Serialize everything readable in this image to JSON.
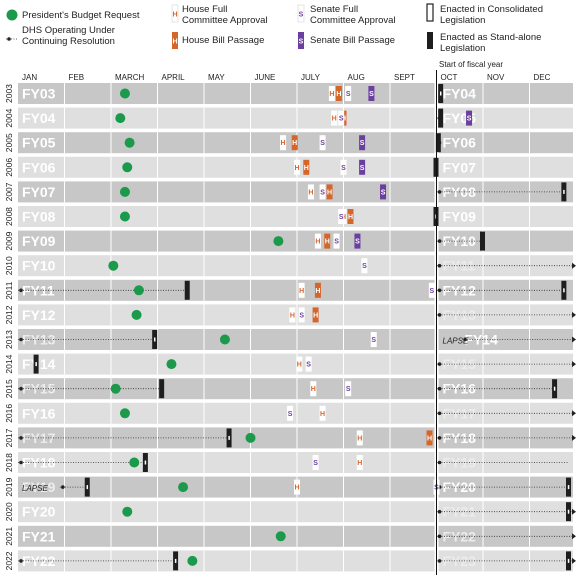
{
  "legend": {
    "budget": "President's Budget Request",
    "cr": "DHS Operating Under Continuing Resolution",
    "house_committee": "House Full Committee Approval",
    "house_passage": "House Bill Passage",
    "senate_committee": "Senate Full Committee Approval",
    "senate_passage": "Senate Bill Passage",
    "consolidated": "Enacted in Consolidated Legislation",
    "standalone": "Enacted as Stand-alone Legislation",
    "house_letter": "H",
    "senate_letter": "S"
  },
  "fiscal_year_start_label": "Start of fiscal year",
  "lapse_label": "LAPSE",
  "colors": {
    "budget": "#1a9a4a",
    "house": "#d4662c",
    "senate": "#6b3fa0",
    "enacted": "#1e1e1e",
    "row_dark": "#c7c7c8",
    "row_light": "#dfdfe0",
    "fy_light": "#ffffff",
    "fy_faded": "#ececec"
  },
  "chart_data": {
    "type": "timeline",
    "months": [
      "JAN",
      "FEB",
      "MARCH",
      "APRIL",
      "MAY",
      "JUNE",
      "JULY",
      "AUG",
      "SEPT",
      "OCT",
      "NOV",
      "DEC"
    ],
    "rows": [
      {
        "year": "2003",
        "left_label": "FY03",
        "right_label": "FY04",
        "budget": 2.3,
        "hc": [
          6.75
        ],
        "hp": [
          6.9
        ],
        "sc": [
          7.1
        ],
        "sp": [
          7.6
        ],
        "enacted_prev": null,
        "enacted_next": {
          "m": 9.1,
          "type": "consolidated"
        },
        "cr_prev": null,
        "cr_next": null,
        "right_faded": false
      },
      {
        "year": "2004",
        "left_label": "FY04",
        "right_label": "FY05",
        "budget": 2.2,
        "hc": [
          6.8
        ],
        "hp": [
          7.0
        ],
        "sc": [
          6.95
        ],
        "sp": [
          9.7
        ],
        "enacted_prev": null,
        "enacted_next": {
          "m": 9.1,
          "type": "standalone"
        },
        "cr_prev": null,
        "cr_next": {
          "from": 9.0,
          "to": 9.1
        },
        "right_faded": false
      },
      {
        "year": "2005",
        "left_label": "FY05",
        "right_label": "FY06",
        "budget": 2.4,
        "hc": [
          5.7
        ],
        "hp": [
          5.95
        ],
        "sc": [
          6.55
        ],
        "sp": [
          7.4
        ],
        "enacted_prev": null,
        "enacted_next": {
          "m": 9.05,
          "type": "standalone"
        },
        "cr_prev": null,
        "cr_next": {
          "from": 9.0,
          "to": 9.05
        },
        "right_faded": false
      },
      {
        "year": "2006",
        "left_label": "FY06",
        "right_label": "FY07",
        "budget": 2.35,
        "hc": [
          6.0
        ],
        "hp": [
          6.2
        ],
        "sc": [
          7.0
        ],
        "sp": [
          7.4
        ],
        "enacted_prev": null,
        "enacted_next": {
          "m": 9.0,
          "type": "standalone"
        },
        "cr_prev": null,
        "cr_next": null,
        "right_faded": false
      },
      {
        "year": "2007",
        "left_label": "FY07",
        "right_label": "FY08",
        "budget": 2.3,
        "hc": [
          6.3
        ],
        "hp": [
          6.7
        ],
        "sc": [
          6.55
        ],
        "sp": [
          7.85
        ],
        "enacted_prev": null,
        "enacted_next": {
          "m": 11.75,
          "type": "consolidated"
        },
        "cr_prev": null,
        "cr_next": {
          "from": 9.0,
          "to": 11.75
        },
        "right_faded": false
      },
      {
        "year": "2008",
        "left_label": "FY08",
        "right_label": "FY09",
        "budget": 2.3,
        "hc": [
          7.0
        ],
        "hp": [
          7.15
        ],
        "sc": [
          6.95
        ],
        "sp": [],
        "enacted_prev": null,
        "enacted_next": {
          "m": 9.0,
          "type": "consolidated"
        },
        "cr_prev": null,
        "cr_next": null,
        "right_faded": false
      },
      {
        "year": "2009",
        "left_label": "FY09",
        "right_label": "FY10",
        "budget": 5.6,
        "hc": [
          6.45
        ],
        "hp": [
          6.65
        ],
        "sc": [
          6.85
        ],
        "sp": [
          7.3
        ],
        "enacted_prev": null,
        "enacted_next": {
          "m": 10.0,
          "type": "standalone"
        },
        "cr_prev": null,
        "cr_next": {
          "from": 9.0,
          "to": 10.0
        },
        "right_faded": false
      },
      {
        "year": "2010",
        "left_label": "FY10",
        "right_label": "FY11",
        "budget": 2.05,
        "hc": [],
        "hp": [],
        "sc": [
          7.45
        ],
        "sp": [],
        "enacted_prev": null,
        "enacted_next": null,
        "cr_prev": null,
        "cr_next": {
          "from": 9.0,
          "to": 12.0
        },
        "right_faded": true
      },
      {
        "year": "2011",
        "left_label": "FY11",
        "right_label": "FY12",
        "budget": 2.6,
        "hc": [
          6.1
        ],
        "hp": [
          6.45
        ],
        "sc": [
          8.9
        ],
        "sp": [],
        "enacted_prev": {
          "m": 3.65,
          "type": "standalone"
        },
        "enacted_next": {
          "m": 11.75,
          "type": "consolidated"
        },
        "cr_prev": {
          "from": 0,
          "to": 3.65
        },
        "cr_next": {
          "from": 9.0,
          "to": 11.75
        },
        "right_faded": false
      },
      {
        "year": "2012",
        "left_label": "FY12",
        "right_label": "FY13",
        "budget": 2.55,
        "hc": [
          5.9
        ],
        "hp": [
          6.4
        ],
        "sc": [
          6.1
        ],
        "sp": [],
        "enacted_prev": null,
        "enacted_next": null,
        "cr_prev": null,
        "cr_next": {
          "from": 9.0,
          "to": 12.0
        },
        "right_faded": true
      },
      {
        "year": "2013",
        "left_label": "FY13",
        "right_label": "FY14",
        "budget": 4.45,
        "hc": [],
        "hp": [],
        "sc": [
          7.65
        ],
        "sp": [],
        "enacted_prev": {
          "m": 2.95,
          "type": "consolidated"
        },
        "enacted_next": null,
        "cr_prev": {
          "from": 0,
          "to": 2.95
        },
        "cr_next": {
          "from": 9.55,
          "to": 12.0
        },
        "right_faded": false,
        "left_faded": true,
        "lapse_next": true
      },
      {
        "year": "2014",
        "left_label": "FY14",
        "right_label": "FY15",
        "budget": 3.3,
        "hc": [
          6.05
        ],
        "hp": [],
        "sc": [
          6.25
        ],
        "sp": [],
        "enacted_prev": {
          "m": 0.4,
          "type": "consolidated"
        },
        "enacted_next": null,
        "cr_prev": null,
        "cr_next": {
          "from": 9.0,
          "to": 12.0
        },
        "right_faded": true
      },
      {
        "year": "2015",
        "left_label": "FY15",
        "right_label": "FY16",
        "budget": 2.1,
        "hc": [
          6.35
        ],
        "hp": [],
        "sc": [
          7.1
        ],
        "sp": [],
        "enacted_prev": {
          "m": 3.1,
          "type": "standalone"
        },
        "enacted_next": {
          "m": 11.55,
          "type": "consolidated"
        },
        "cr_prev": {
          "from": 0,
          "to": 3.1
        },
        "cr_next": {
          "from": 9.0,
          "to": 11.55
        },
        "right_faded": false,
        "left_faded": true
      },
      {
        "year": "2016",
        "left_label": "FY16",
        "right_label": "FY17",
        "budget": 2.3,
        "hc": [
          6.55
        ],
        "hp": [],
        "sc": [
          5.85
        ],
        "sp": [],
        "enacted_prev": null,
        "enacted_next": null,
        "cr_prev": null,
        "cr_next": {
          "from": 9.0,
          "to": 12.0
        },
        "right_faded": true
      },
      {
        "year": "2017",
        "left_label": "FY17",
        "right_label": "FY18",
        "budget": 5.0,
        "hc": [
          7.35
        ],
        "hp": [
          8.85
        ],
        "sc": [],
        "sp": [],
        "enacted_prev": {
          "m": 4.55,
          "type": "consolidated"
        },
        "enacted_next": null,
        "cr_prev": {
          "from": 0,
          "to": 4.55
        },
        "cr_next": {
          "from": 9.0,
          "to": 12.0
        },
        "right_faded": false,
        "left_faded": true
      },
      {
        "year": "2018",
        "left_label": "FY18",
        "right_label": "FY19",
        "budget": 2.5,
        "hc": [
          7.35
        ],
        "hp": [],
        "sc": [
          6.4
        ],
        "sp": [],
        "enacted_prev": {
          "m": 2.75,
          "type": "consolidated"
        },
        "enacted_next": null,
        "cr_prev": {
          "from": 0,
          "to": 2.75
        },
        "cr_next": {
          "from": 9.0,
          "to": 11.85
        },
        "right_faded": true
      },
      {
        "year": "2019",
        "left_label": "FY19",
        "right_label": "FY20",
        "budget": 3.55,
        "hc": [
          6.0
        ],
        "hp": [],
        "sc": [
          9.0
        ],
        "sp": [],
        "enacted_prev": {
          "m": 1.5,
          "type": "consolidated"
        },
        "enacted_next": {
          "m": 11.85,
          "type": "consolidated"
        },
        "cr_prev": {
          "from": 0.9,
          "to": 1.5
        },
        "cr_next": {
          "from": 9.0,
          "to": 11.85
        },
        "right_faded": false,
        "left_faded": true,
        "lapse_prev": true
      },
      {
        "year": "2020",
        "left_label": "FY20",
        "right_label": "FY21",
        "budget": 2.35,
        "hc": [],
        "hp": [],
        "sc": [],
        "sp": [],
        "enacted_prev": null,
        "enacted_next": {
          "m": 12.0,
          "type": "consolidated"
        },
        "cr_prev": null,
        "cr_next": {
          "from": 9.0,
          "to": 12.0
        },
        "right_faded": true
      },
      {
        "year": "2021",
        "left_label": "FY21",
        "right_label": "FY22",
        "budget": 5.65,
        "hc": [],
        "hp": [],
        "sc": [],
        "sp": [],
        "enacted_prev": null,
        "enacted_next": null,
        "cr_prev": null,
        "cr_next": {
          "from": 9.0,
          "to": 12.0
        },
        "right_faded": true
      },
      {
        "year": "2022",
        "left_label": "FY22",
        "right_label": "FY23",
        "budget": 3.75,
        "hc": [],
        "hp": [],
        "sc": [],
        "sp": [],
        "enacted_prev": {
          "m": 3.4,
          "type": "consolidated"
        },
        "enacted_next": {
          "m": 12.0,
          "type": "consolidated"
        },
        "cr_prev": {
          "from": 0,
          "to": 3.4
        },
        "cr_next": {
          "from": 9.0,
          "to": 12.0
        },
        "right_faded": true
      }
    ],
    "extra_marks": [
      {
        "year": "2017",
        "type": "hp",
        "m": 8.85
      }
    ]
  }
}
